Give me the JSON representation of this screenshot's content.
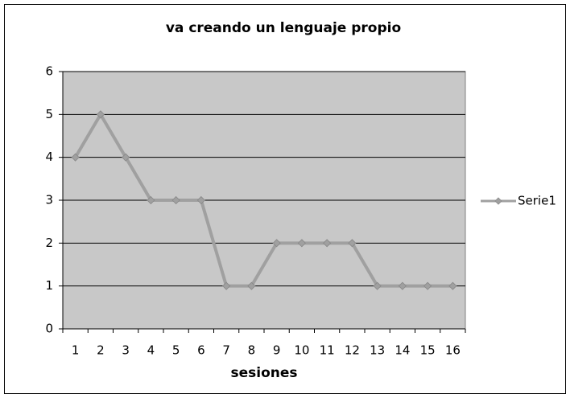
{
  "chart_data": {
    "type": "line",
    "title": "va creando un lenguaje propio",
    "x_label": "sesiones",
    "categories": [
      "1",
      "2",
      "3",
      "4",
      "5",
      "6",
      "7",
      "8",
      "9",
      "10",
      "11",
      "12",
      "13",
      "14",
      "15",
      "16"
    ],
    "series": [
      {
        "name": "Serie1",
        "color": "#a0a0a0",
        "values": [
          4,
          5,
          4,
          3,
          3,
          3,
          1,
          1,
          2,
          2,
          2,
          2,
          1,
          1,
          1,
          1
        ]
      }
    ],
    "ylim": [
      0,
      6
    ],
    "yticks": [
      0,
      1,
      2,
      3,
      4,
      5,
      6
    ],
    "grid": true,
    "legend": "right"
  }
}
